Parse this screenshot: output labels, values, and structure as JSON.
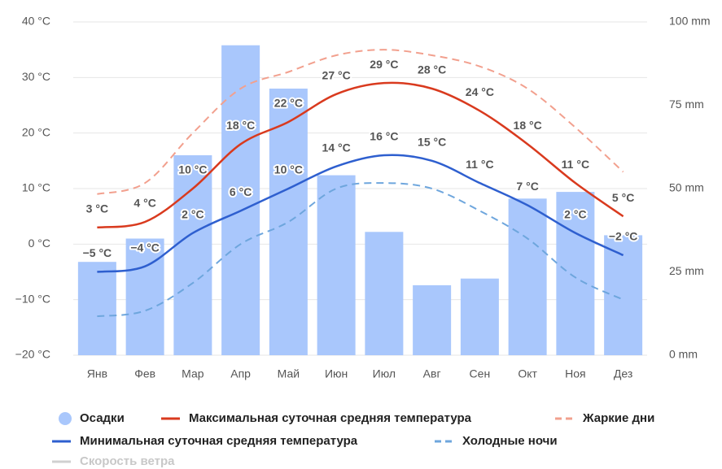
{
  "chart_data": {
    "type": "combo",
    "categories": [
      "Янв",
      "Фев",
      "Мар",
      "Апр",
      "Май",
      "Июн",
      "Июл",
      "Авг",
      "Сен",
      "Окт",
      "Ноя",
      "Дез"
    ],
    "ylim": [
      -20,
      40
    ],
    "yticks": [
      {
        "value": -20,
        "label": "−20 °C"
      },
      {
        "value": -10,
        "label": "−10 °C"
      },
      {
        "value": 0,
        "label": "0 °C"
      },
      {
        "value": 10,
        "label": "10 °C"
      },
      {
        "value": 20,
        "label": "20 °C"
      },
      {
        "value": 30,
        "label": "30 °C"
      },
      {
        "value": 40,
        "label": "40 °C"
      }
    ],
    "y2lim": [
      0,
      100
    ],
    "y2ticks": [
      {
        "value": 0,
        "label": "0 mm"
      },
      {
        "value": 25,
        "label": "25 mm"
      },
      {
        "value": 50,
        "label": "50 mm"
      },
      {
        "value": 75,
        "label": "75 mm"
      },
      {
        "value": 100,
        "label": "100 mm"
      }
    ],
    "grid": true,
    "series": [
      {
        "name": "Осадки",
        "type": "bar",
        "axis": "y2",
        "color": "#a9c7fc",
        "values": [
          28,
          35,
          60,
          93,
          80,
          54,
          37,
          21,
          23,
          47,
          49,
          36
        ]
      },
      {
        "name": "Максимальная суточная средняя температура",
        "type": "line",
        "color": "#d93a1e",
        "label_color": "#9c2b17",
        "values": [
          3,
          4,
          10,
          18,
          22,
          27,
          29,
          28,
          24,
          18,
          11,
          5
        ],
        "value_labels": [
          "3 °C",
          "4 °C",
          "10 °C",
          "18 °C",
          "22 °C",
          "27 °C",
          "29 °C",
          "28 °C",
          "24 °C",
          "18 °C",
          "11 °C",
          "5 °C"
        ]
      },
      {
        "name": "Жаркие дни",
        "type": "line",
        "dashed": true,
        "color": "#f2a08e",
        "values": [
          9,
          11,
          20,
          28,
          31,
          34,
          35,
          34,
          32,
          28,
          21,
          13
        ]
      },
      {
        "name": "Минимальная суточная средняя температура",
        "type": "line",
        "color": "#2e5fcf",
        "label_color": "#2a55c0",
        "values": [
          -5,
          -4,
          2,
          6,
          10,
          14,
          16,
          15,
          11,
          7,
          2,
          -2
        ],
        "value_labels": [
          "−5 °C",
          "−4 °C",
          "2 °C",
          "6 °C",
          "10 °C",
          "14 °C",
          "16 °C",
          "15 °C",
          "11 °C",
          "7 °C",
          "2 °C",
          "−2 °C"
        ]
      },
      {
        "name": "Холодные ночи",
        "type": "line",
        "dashed": true,
        "color": "#6ea6dd",
        "values": [
          -13,
          -12,
          -7,
          0,
          4,
          10,
          11,
          10,
          6,
          1,
          -6,
          -10
        ]
      }
    ],
    "hidden_series": [
      {
        "name": "Скорость ветра",
        "color": "#d0d0d0"
      }
    ]
  }
}
